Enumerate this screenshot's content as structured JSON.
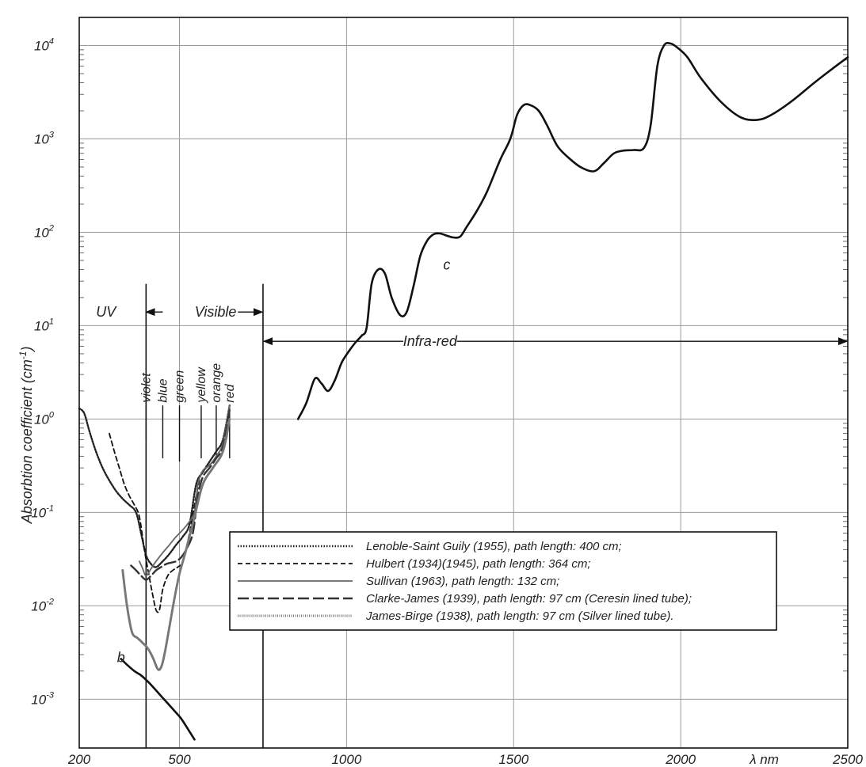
{
  "chart_data": {
    "type": "line",
    "title": "",
    "xlabel": "λ nm",
    "ylabel": "Absorbtion coefficient (cm",
    "ylabel_sup": "-1",
    "ylabel_close": ")",
    "x_scale": "linear",
    "y_scale": "log",
    "xlim": [
      200,
      2500
    ],
    "ylim": [
      0.0003,
      20000
    ],
    "grid": true,
    "x_ticks": [
      {
        "value": 200,
        "label": "200"
      },
      {
        "value": 500,
        "label": "500"
      },
      {
        "value": 1000,
        "label": "1000"
      },
      {
        "value": 1500,
        "label": "1500"
      },
      {
        "value": 2000,
        "label": "2000"
      },
      {
        "value": 2500,
        "label": "2500"
      }
    ],
    "y_ticks": [
      {
        "value": 0.001,
        "base": "10",
        "exp": "-3"
      },
      {
        "value": 0.01,
        "base": "10",
        "exp": "-2"
      },
      {
        "value": 0.1,
        "base": "10",
        "exp": "-1"
      },
      {
        "value": 1,
        "base": "10",
        "exp": "0"
      },
      {
        "value": 10,
        "base": "10",
        "exp": "1"
      },
      {
        "value": 100,
        "base": "10",
        "exp": "2"
      },
      {
        "value": 1000,
        "base": "10",
        "exp": "3"
      },
      {
        "value": 10000,
        "base": "10",
        "exp": "4"
      }
    ],
    "regions": [
      {
        "label": "UV",
        "x": 280,
        "y": 14
      },
      {
        "label": "Visible",
        "x": 525,
        "y": 14
      },
      {
        "label": "Infra-red",
        "x": 1250,
        "y": 6.8
      }
    ],
    "region_boundaries": [
      400,
      750
    ],
    "color_bands": [
      {
        "label": "violet",
        "x": 400,
        "line_to": 0.6
      },
      {
        "label": "blue",
        "x": 450,
        "line_to": 0.38
      },
      {
        "label": "green",
        "x": 500,
        "line_to": 0.35
      },
      {
        "label": "yellow",
        "x": 565,
        "line_to": 0.38
      },
      {
        "label": "orange",
        "x": 610,
        "line_to": 0.38
      },
      {
        "label": "red",
        "x": 650,
        "line_to": 0.38
      }
    ],
    "curve_labels": [
      {
        "label": "b",
        "x": 325,
        "y": 0.0025
      },
      {
        "label": "c",
        "x": 1300,
        "y": 40
      }
    ],
    "series": [
      {
        "key": "c",
        "style": "solid-bold",
        "x": [
          855,
          880,
          905,
          925,
          945,
          965,
          985,
          1005,
          1025,
          1045,
          1060,
          1075,
          1095,
          1115,
          1135,
          1160,
          1180,
          1200,
          1220,
          1240,
          1260,
          1280,
          1300,
          1320,
          1340,
          1360,
          1390,
          1420,
          1460,
          1490,
          1510,
          1530,
          1550,
          1575,
          1600,
          1630,
          1660,
          1700,
          1740,
          1770,
          1800,
          1830,
          1860,
          1890,
          1910,
          1930,
          1950,
          1970,
          1990,
          2020,
          2060,
          2120,
          2180,
          2230,
          2270,
          2330,
          2400,
          2450,
          2500
        ],
        "y": [
          1.0,
          1.5,
          2.7,
          2.4,
          2.0,
          2.6,
          4.0,
          5.2,
          6.5,
          7.8,
          9.5,
          28,
          40,
          36,
          20,
          13,
          14,
          26,
          55,
          80,
          95,
          97,
          92,
          88,
          90,
          115,
          170,
          270,
          600,
          1000,
          1800,
          2300,
          2300,
          2000,
          1400,
          850,
          650,
          500,
          450,
          550,
          700,
          750,
          760,
          800,
          1400,
          6000,
          10000,
          10500,
          9500,
          7500,
          4500,
          2500,
          1700,
          1600,
          1800,
          2500,
          4000,
          5500,
          7500
        ]
      },
      {
        "key": "b",
        "style": "solid-bold",
        "x": [
          325,
          345,
          365,
          385,
          405,
          425,
          445,
          465,
          485,
          505,
          525,
          545
        ],
        "y": [
          0.0027,
          0.0023,
          0.002,
          0.0018,
          0.00155,
          0.0013,
          0.00108,
          0.0009,
          0.00075,
          0.00062,
          0.00048,
          0.00037
        ]
      },
      {
        "key": "lenoble",
        "style": "dotted",
        "x": [
          200,
          215,
          230,
          250,
          270,
          290,
          310,
          330,
          350,
          370,
          385,
          400,
          415,
          430,
          450,
          470,
          490,
          510,
          530,
          550,
          570,
          590,
          610,
          630,
          650
        ],
        "y": [
          1.3,
          1.15,
          0.75,
          0.45,
          0.3,
          0.22,
          0.17,
          0.14,
          0.12,
          0.1,
          0.06,
          0.035,
          0.028,
          0.026,
          0.03,
          0.036,
          0.045,
          0.055,
          0.075,
          0.2,
          0.27,
          0.35,
          0.45,
          0.6,
          1.4
        ]
      },
      {
        "key": "hulbert",
        "style": "dashed",
        "x": [
          290,
          305,
          320,
          335,
          350,
          365,
          380,
          395,
          410,
          420,
          430,
          440,
          450,
          465,
          480,
          495,
          510,
          530,
          550,
          565,
          580,
          600,
          620,
          640,
          650
        ],
        "y": [
          0.7,
          0.45,
          0.3,
          0.2,
          0.15,
          0.12,
          0.09,
          0.04,
          0.02,
          0.013,
          0.009,
          0.009,
          0.015,
          0.021,
          0.024,
          0.026,
          0.03,
          0.06,
          0.15,
          0.26,
          0.3,
          0.35,
          0.45,
          0.6,
          1.3
        ]
      },
      {
        "key": "sullivan",
        "style": "solid-thin",
        "x": [
          380,
          390,
          400,
          415,
          430,
          450,
          470,
          490,
          510,
          530,
          545,
          555,
          570,
          590,
          610,
          630,
          650
        ],
        "y": [
          0.03,
          0.025,
          0.021,
          0.025,
          0.03,
          0.037,
          0.045,
          0.055,
          0.065,
          0.08,
          0.1,
          0.2,
          0.28,
          0.32,
          0.4,
          0.55,
          1.4
        ]
      },
      {
        "key": "clarke",
        "style": "long-dashed",
        "x": [
          355,
          370,
          385,
          400,
          415,
          430,
          445,
          460,
          475,
          490,
          505,
          520,
          540,
          555,
          570,
          590,
          610,
          630,
          650
        ],
        "y": [
          0.027,
          0.024,
          0.021,
          0.019,
          0.021,
          0.024,
          0.026,
          0.028,
          0.029,
          0.03,
          0.033,
          0.04,
          0.06,
          0.15,
          0.24,
          0.3,
          0.38,
          0.5,
          1.25
        ]
      },
      {
        "key": "james",
        "style": "fine-dotted",
        "x": [
          330,
          340,
          350,
          360,
          375,
          390,
          405,
          420,
          435,
          445,
          455,
          470,
          485,
          500,
          520,
          545,
          570,
          600,
          630,
          650
        ],
        "y": [
          0.024,
          0.012,
          0.007,
          0.005,
          0.0045,
          0.004,
          0.0035,
          0.0028,
          0.0021,
          0.0022,
          0.003,
          0.006,
          0.012,
          0.022,
          0.04,
          0.09,
          0.2,
          0.3,
          0.45,
          1.0
        ]
      }
    ],
    "legend": {
      "placement": "bottom-right",
      "entries": [
        {
          "key": "lenoble",
          "style": "dotted",
          "label": "Lenoble-Saint Guily (1955), path length: 400 cm;"
        },
        {
          "key": "hulbert",
          "style": "dashed",
          "label": "Hulbert (1934)(1945), path length: 364 cm;"
        },
        {
          "key": "sullivan",
          "style": "solid-thin",
          "label": "Sullivan (1963), path length: 132 cm;"
        },
        {
          "key": "clarke",
          "style": "long-dashed",
          "label": "Clarke-James (1939), path length: 97 cm (Ceresin lined tube);"
        },
        {
          "key": "james",
          "style": "fine-dotted",
          "label": "James-Birge (1938), path length: 97 cm (Silver lined tube)."
        }
      ]
    }
  }
}
